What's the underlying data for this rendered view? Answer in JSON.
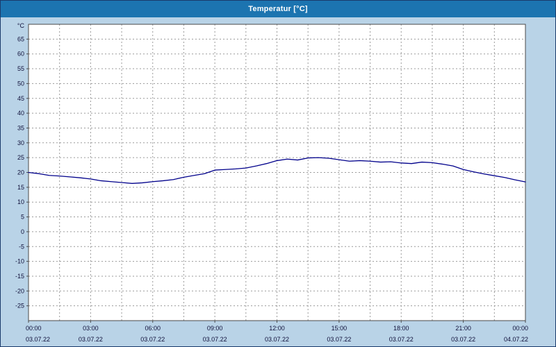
{
  "window": {
    "title": "Temperatur [°C]"
  },
  "colors": {
    "header_bg": "#1c74b0",
    "header_text": "#ffffff",
    "frame_bg": "#b9d3e7",
    "window_border": "#1a3a6b",
    "plot_bg": "#ffffff",
    "plot_border": "#4a4a4a",
    "grid": "#9a9a9a",
    "tick_text": "#10103a",
    "line": "#00008b"
  },
  "chart_data": {
    "type": "line",
    "title": "Temperatur [°C]",
    "ylabel": "°C",
    "ylim": [
      -30,
      70
    ],
    "y_ticks": [
      65,
      60,
      55,
      50,
      45,
      40,
      35,
      30,
      25,
      20,
      15,
      10,
      5,
      0,
      -5,
      -10,
      -15,
      -20,
      -25
    ],
    "x_range_hours": [
      0,
      24
    ],
    "x_grid_step_hours": 1.5,
    "x_tick_step_hours": 3,
    "x_tick_times": [
      "00:00",
      "03:00",
      "06:00",
      "09:00",
      "12:00",
      "15:00",
      "18:00",
      "21:00",
      "00:00"
    ],
    "x_tick_dates": [
      "03.07.22",
      "03.07.22",
      "03.07.22",
      "03.07.22",
      "03.07.22",
      "03.07.22",
      "03.07.22",
      "03.07.22",
      "04.07.22"
    ],
    "grid": "dashed",
    "legend": "none",
    "series": [
      {
        "name": "Temperatur",
        "color": "#00008b",
        "x_step_hours": 0.5,
        "values": [
          20.0,
          19.6,
          19.0,
          18.8,
          18.5,
          18.2,
          17.8,
          17.2,
          16.9,
          16.6,
          16.3,
          16.5,
          16.9,
          17.2,
          17.6,
          18.4,
          19.0,
          19.6,
          20.8,
          21.0,
          21.2,
          21.5,
          22.2,
          23.0,
          24.0,
          24.5,
          24.2,
          24.9,
          25.0,
          24.8,
          24.3,
          23.8,
          24.0,
          23.8,
          23.5,
          23.6,
          23.2,
          23.0,
          23.5,
          23.3,
          22.8,
          22.2,
          21.0,
          20.2,
          19.5,
          18.9,
          18.3,
          17.5,
          16.8
        ]
      }
    ]
  }
}
